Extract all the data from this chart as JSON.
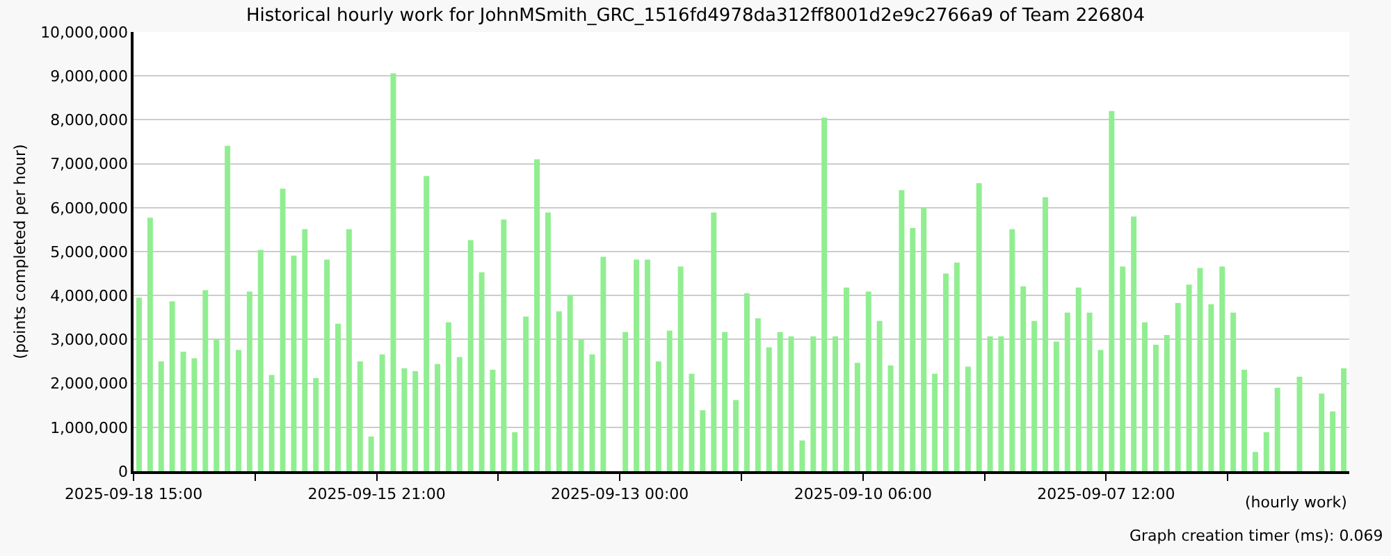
{
  "chart_data": {
    "type": "bar",
    "title": "Historical hourly work for JohnMSmith_GRC_1516fd4978da312ff8001d2e9c2766a9 of Team 226804",
    "xlabel": "(hourly work)",
    "ylabel": "(points completed per hour)",
    "annotations": [
      "Graph creation timer (ms): 0.069"
    ],
    "categories": [
      "2025-09-18 15:00",
      null,
      null,
      null,
      null,
      null,
      null,
      null,
      null,
      null,
      null,
      null,
      null,
      null,
      null,
      null,
      null,
      null,
      null,
      null,
      null,
      null,
      "2025-09-15 21:00",
      null,
      null,
      null,
      null,
      null,
      null,
      null,
      null,
      null,
      null,
      null,
      null,
      null,
      null,
      null,
      null,
      null,
      null,
      null,
      null,
      null,
      "2025-09-13 00:00",
      null,
      null,
      null,
      null,
      null,
      null,
      null,
      null,
      null,
      null,
      null,
      null,
      null,
      null,
      null,
      null,
      null,
      null,
      null,
      null,
      null,
      "2025-09-10 06:00",
      null,
      null,
      null,
      null,
      null,
      null,
      null,
      null,
      null,
      null,
      null,
      null,
      null,
      null,
      null,
      null,
      null,
      null,
      null,
      null,
      null,
      "2025-09-07 12:00",
      null,
      null,
      null,
      null,
      null,
      null,
      null,
      null,
      null,
      null,
      null,
      null,
      null,
      null,
      null,
      null,
      null,
      null,
      null,
      null,
      null
    ],
    "values": [
      3950000,
      5770000,
      2500000,
      3870000,
      2720000,
      2570000,
      4120000,
      2990000,
      7410000,
      2760000,
      4090000,
      5040000,
      2190000,
      6430000,
      4910000,
      5510000,
      2120000,
      4820000,
      3360000,
      5510000,
      2500000,
      790000,
      2660000,
      9060000,
      2340000,
      2280000,
      6720000,
      2440000,
      3390000,
      2600000,
      5260000,
      4530000,
      2310000,
      5730000,
      890000,
      3520000,
      7100000,
      5890000,
      3640000,
      4020000,
      3000000,
      2660000,
      4880000,
      null,
      3170000,
      4820000,
      4820000,
      2500000,
      3200000,
      4660000,
      2220000,
      1390000,
      5890000,
      3170000,
      1620000,
      4050000,
      3480000,
      2820000,
      3170000,
      3070000,
      700000,
      3070000,
      8050000,
      3070000,
      4180000,
      2470000,
      4090000,
      3420000,
      2410000,
      6400000,
      5540000,
      6010000,
      2220000,
      4500000,
      4750000,
      2380000,
      6560000,
      3070000,
      3070000,
      5510000,
      4210000,
      3420000,
      6240000,
      2950000,
      3610000,
      4180000,
      3610000,
      2760000,
      8200000,
      4660000,
      5800000,
      3390000,
      2880000,
      3100000,
      3830000,
      4250000,
      4630000,
      3800000,
      4660000,
      3610000,
      2310000,
      440000,
      890000,
      1900000,
      null,
      2150000,
      null,
      1770000,
      1360000,
      2340000
    ],
    "color": "#90ee90",
    "ylim": [
      0,
      10000000
    ],
    "yticks": [
      0,
      {
        "value": 1000000,
        "label": "1,000,000"
      },
      {
        "value": 2000000,
        "label": "2,000,000"
      },
      {
        "value": 3000000,
        "label": "3,000,000"
      },
      {
        "value": 4000000,
        "label": "4,000,000"
      },
      {
        "value": 5000000,
        "label": "5,000,000"
      },
      {
        "value": 6000000,
        "label": "6,000,000"
      },
      {
        "value": 7000000,
        "label": "7,000,000"
      },
      {
        "value": 8000000,
        "label": "8,000,000"
      },
      {
        "value": 9000000,
        "label": "9,000,000"
      },
      {
        "value": 10000000,
        "label": "10,000,000"
      }
    ],
    "grid": "y"
  }
}
